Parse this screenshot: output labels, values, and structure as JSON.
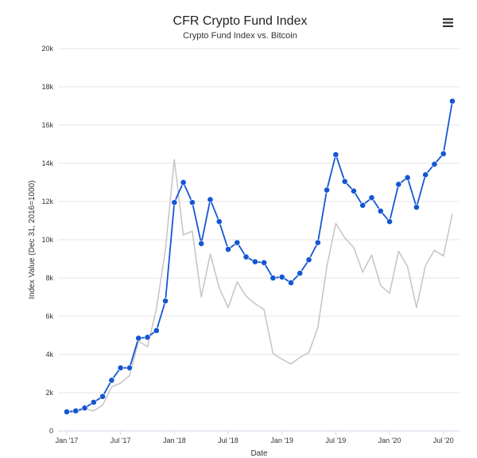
{
  "chart_data": {
    "type": "line",
    "title": "CFR Crypto Fund Index",
    "subtitle": "Crypto Fund Index vs. Bitcoin",
    "xlabel": "Date",
    "ylabel": "Index Value (Dec 31, 2016=1000)",
    "ylim": [
      0,
      20000
    ],
    "y_ticks": [
      0,
      2000,
      4000,
      6000,
      8000,
      10000,
      12000,
      14000,
      16000,
      18000,
      20000
    ],
    "y_tick_labels": [
      "0",
      "2k",
      "4k",
      "6k",
      "8k",
      "10k",
      "12k",
      "14k",
      "16k",
      "18k",
      "20k"
    ],
    "x_range": [
      "2017-01",
      "2020-08"
    ],
    "x_tick_labels": [
      "Jan '17",
      "Jul '17",
      "Jan '18",
      "Jul '18",
      "Jan '19",
      "Jul '19",
      "Jan '20",
      "Jul '20"
    ],
    "grid": true,
    "legend": "none",
    "x": [
      "2017-01",
      "2017-02",
      "2017-03",
      "2017-04",
      "2017-05",
      "2017-06",
      "2017-07",
      "2017-08",
      "2017-09",
      "2017-10",
      "2017-11",
      "2017-12",
      "2018-01",
      "2018-02",
      "2018-03",
      "2018-04",
      "2018-05",
      "2018-06",
      "2018-07",
      "2018-08",
      "2018-09",
      "2018-10",
      "2018-11",
      "2018-12",
      "2019-01",
      "2019-02",
      "2019-03",
      "2019-04",
      "2019-05",
      "2019-06",
      "2019-07",
      "2019-08",
      "2019-09",
      "2019-10",
      "2019-11",
      "2019-12",
      "2020-01",
      "2020-02",
      "2020-03",
      "2020-04",
      "2020-05",
      "2020-06",
      "2020-07",
      "2020-08"
    ],
    "series": [
      {
        "values": [
          1000,
          1050,
          1200,
          1500,
          1800,
          2650,
          3300,
          3300,
          4850,
          4900,
          5250,
          6800,
          11950,
          13000,
          11950,
          9800,
          12100,
          10950,
          9500,
          9850,
          9100,
          8850,
          8800,
          8000,
          8050,
          7750,
          8250,
          8950,
          9850,
          12600,
          14450,
          13050,
          12550,
          11800,
          12200,
          11500,
          10950,
          12900,
          13250,
          11700,
          13400,
          13950,
          14500,
          17250
        ],
        "color": "#1456d2",
        "markers": true
      },
      {
        "values": [
          1000,
          950,
          1150,
          1050,
          1350,
          2300,
          2500,
          2900,
          4700,
          4400,
          6400,
          9500,
          14200,
          10250,
          10450,
          7000,
          9250,
          7500,
          6450,
          7800,
          7050,
          6650,
          6350,
          4050,
          3750,
          3500,
          3850,
          4100,
          5400,
          8600,
          10850,
          10100,
          9600,
          8300,
          9200,
          7600,
          7200,
          9400,
          8600,
          6450,
          8650,
          9450,
          9150,
          11350
        ],
        "color": "#c4c4c4",
        "markers": false
      }
    ]
  },
  "menu_icon": "hamburger-menu-icon"
}
